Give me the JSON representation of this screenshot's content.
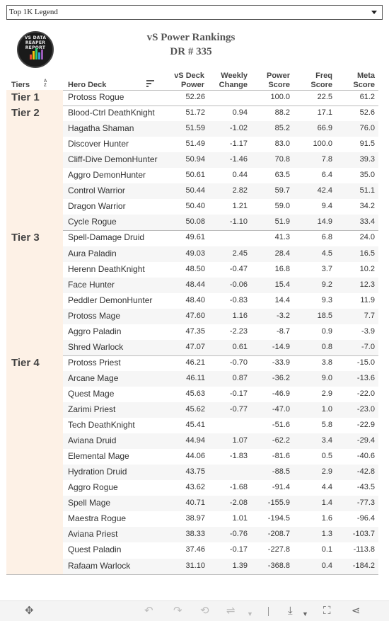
{
  "dropdown": {
    "value": "Top 1K Legend"
  },
  "logo": {
    "text": "VS DATA REAPER REPORT"
  },
  "title": {
    "line1": "vS  Power  Rankings",
    "line2": "DR # 335"
  },
  "headers": {
    "tiers": "Tiers",
    "deck": "Hero Deck",
    "power_1": "vS Deck",
    "power_2": "Power",
    "change_1": "Weekly",
    "change_2": "Change",
    "score_1": "Power",
    "score_2": "Score",
    "freq_1": "Freq",
    "freq_2": "Score",
    "meta_1": "Meta",
    "meta_2": "Score"
  },
  "sort_icon": {
    "top": "A",
    "bottom": "Z"
  },
  "tiers": [
    {
      "label": "Tier 1",
      "rows": [
        {
          "deck": "Protoss Rogue",
          "power": "52.26",
          "change": "",
          "score": "100.0",
          "freq": "22.5",
          "meta": "61.2"
        }
      ]
    },
    {
      "label": "Tier 2",
      "rows": [
        {
          "deck": "Blood-Ctrl DeathKnight",
          "power": "51.72",
          "change": "0.94",
          "score": "88.2",
          "freq": "17.1",
          "meta": "52.6"
        },
        {
          "deck": "Hagatha Shaman",
          "power": "51.59",
          "change": "-1.02",
          "score": "85.2",
          "freq": "66.9",
          "meta": "76.0"
        },
        {
          "deck": "Discover Hunter",
          "power": "51.49",
          "change": "-1.17",
          "score": "83.0",
          "freq": "100.0",
          "meta": "91.5"
        },
        {
          "deck": "Cliff-Dive DemonHunter",
          "power": "50.94",
          "change": "-1.46",
          "score": "70.8",
          "freq": "7.8",
          "meta": "39.3"
        },
        {
          "deck": "Aggro DemonHunter",
          "power": "50.61",
          "change": "0.44",
          "score": "63.5",
          "freq": "6.4",
          "meta": "35.0"
        },
        {
          "deck": "Control Warrior",
          "power": "50.44",
          "change": "2.82",
          "score": "59.7",
          "freq": "42.4",
          "meta": "51.1"
        },
        {
          "deck": "Dragon Warrior",
          "power": "50.40",
          "change": "1.21",
          "score": "59.0",
          "freq": "9.4",
          "meta": "34.2"
        },
        {
          "deck": "Cycle Rogue",
          "power": "50.08",
          "change": "-1.10",
          "score": "51.9",
          "freq": "14.9",
          "meta": "33.4"
        }
      ]
    },
    {
      "label": "Tier 3",
      "rows": [
        {
          "deck": "Spell-Damage Druid",
          "power": "49.61",
          "change": "",
          "score": "41.3",
          "freq": "6.8",
          "meta": "24.0"
        },
        {
          "deck": "Aura Paladin",
          "power": "49.03",
          "change": "2.45",
          "score": "28.4",
          "freq": "4.5",
          "meta": "16.5"
        },
        {
          "deck": "Herenn DeathKnight",
          "power": "48.50",
          "change": "-0.47",
          "score": "16.8",
          "freq": "3.7",
          "meta": "10.2"
        },
        {
          "deck": "Face Hunter",
          "power": "48.44",
          "change": "-0.06",
          "score": "15.4",
          "freq": "9.2",
          "meta": "12.3"
        },
        {
          "deck": "Peddler DemonHunter",
          "power": "48.40",
          "change": "-0.83",
          "score": "14.4",
          "freq": "9.3",
          "meta": "11.9"
        },
        {
          "deck": "Protoss Mage",
          "power": "47.60",
          "change": "1.16",
          "score": "-3.2",
          "freq": "18.5",
          "meta": "7.7"
        },
        {
          "deck": "Aggro Paladin",
          "power": "47.35",
          "change": "-2.23",
          "score": "-8.7",
          "freq": "0.9",
          "meta": "-3.9"
        },
        {
          "deck": "Shred Warlock",
          "power": "47.07",
          "change": "0.61",
          "score": "-14.9",
          "freq": "0.8",
          "meta": "-7.0"
        }
      ]
    },
    {
      "label": "Tier 4",
      "rows": [
        {
          "deck": "Protoss Priest",
          "power": "46.21",
          "change": "-0.70",
          "score": "-33.9",
          "freq": "3.8",
          "meta": "-15.0"
        },
        {
          "deck": "Arcane Mage",
          "power": "46.11",
          "change": "0.87",
          "score": "-36.2",
          "freq": "9.0",
          "meta": "-13.6"
        },
        {
          "deck": "Quest Mage",
          "power": "45.63",
          "change": "-0.17",
          "score": "-46.9",
          "freq": "2.9",
          "meta": "-22.0"
        },
        {
          "deck": "Zarimi Priest",
          "power": "45.62",
          "change": "-0.77",
          "score": "-47.0",
          "freq": "1.0",
          "meta": "-23.0"
        },
        {
          "deck": "Tech DeathKnight",
          "power": "45.41",
          "change": "",
          "score": "-51.6",
          "freq": "5.8",
          "meta": "-22.9"
        },
        {
          "deck": "Aviana Druid",
          "power": "44.94",
          "change": "1.07",
          "score": "-62.2",
          "freq": "3.4",
          "meta": "-29.4"
        },
        {
          "deck": "Elemental Mage",
          "power": "44.06",
          "change": "-1.83",
          "score": "-81.6",
          "freq": "0.5",
          "meta": "-40.6"
        },
        {
          "deck": "Hydration Druid",
          "power": "43.75",
          "change": "",
          "score": "-88.5",
          "freq": "2.9",
          "meta": "-42.8"
        },
        {
          "deck": "Aggro Rogue",
          "power": "43.62",
          "change": "-1.68",
          "score": "-91.4",
          "freq": "4.4",
          "meta": "-43.5"
        },
        {
          "deck": "Spell Mage",
          "power": "40.71",
          "change": "-2.08",
          "score": "-155.9",
          "freq": "1.4",
          "meta": "-77.3"
        },
        {
          "deck": "Maestra Rogue",
          "power": "38.97",
          "change": "1.01",
          "score": "-194.5",
          "freq": "1.6",
          "meta": "-96.4"
        },
        {
          "deck": "Aviana Priest",
          "power": "38.33",
          "change": "-0.76",
          "score": "-208.7",
          "freq": "1.3",
          "meta": "-103.7"
        },
        {
          "deck": "Quest Paladin",
          "power": "37.46",
          "change": "-0.17",
          "score": "-227.8",
          "freq": "0.1",
          "meta": "-113.8"
        },
        {
          "deck": "Rafaam Warlock",
          "power": "31.10",
          "change": "1.39",
          "score": "-368.8",
          "freq": "0.4",
          "meta": "-184.2"
        }
      ]
    }
  ],
  "toolbar": {
    "icons": [
      "move-icon",
      "undo-icon",
      "redo-icon",
      "revert-icon",
      "refresh-icon",
      "refresh-dropdown-icon",
      "download-icon",
      "download-dropdown-icon",
      "fullscreen-icon",
      "share-icon"
    ]
  },
  "colors": {
    "tier_bg": "#fdf1e6",
    "alt_row": "#f6f6f6",
    "separator": "#bbbbbb"
  }
}
